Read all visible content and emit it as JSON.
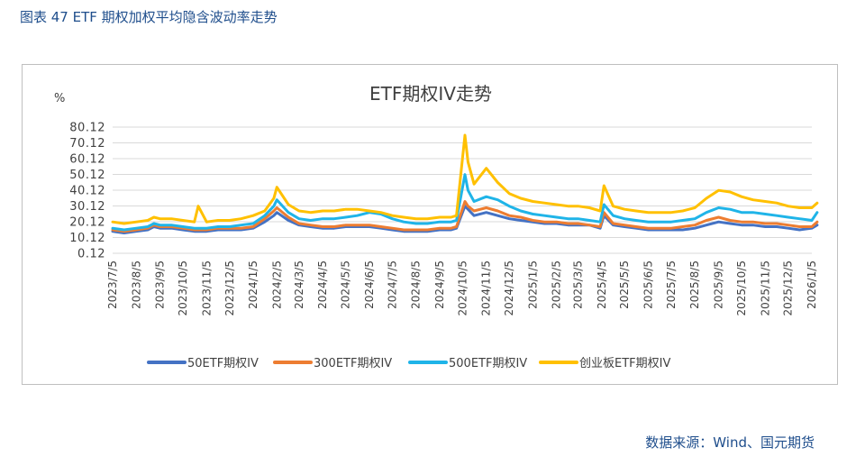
{
  "caption": "图表 47 ETF 期权加权平均隐含波动率走势",
  "source": "数据来源：Wind、国元期货",
  "chart_data": {
    "type": "line",
    "title": "ETF期权IV走势",
    "unit_label": "%",
    "y_ticks": [
      "0.12",
      "10.12",
      "20.12",
      "30.12",
      "40.12",
      "50.12",
      "60.12",
      "70.12",
      "80.12"
    ],
    "ylim": [
      0.12,
      80.12
    ],
    "grid": true,
    "legend_position": "bottom",
    "x_tick_labels": [
      "2023/7/5",
      "2023/8/5",
      "2023/9/5",
      "2023/10/5",
      "2023/11/5",
      "2023/12/5",
      "2024/1/5",
      "2024/2/5",
      "2024/3/5",
      "2024/4/5",
      "2024/5/5",
      "2024/6/5",
      "2024/7/5",
      "2024/8/5",
      "2024/9/5",
      "2024/10/5",
      "2024/11/5",
      "2024/12/5",
      "2025/1/5",
      "2025/2/5",
      "2025/3/5",
      "2025/4/5",
      "2025/5/5",
      "2025/6/5",
      "2025/7/5",
      "2025/8/5",
      "2025/9/5",
      "2025/10/5",
      "2025/11/5",
      "2025/12/5",
      "2026/1/5"
    ],
    "x": [
      "2023-07-05",
      "2023-07-20",
      "2023-08-05",
      "2023-08-20",
      "2023-08-28",
      "2023-09-05",
      "2023-09-20",
      "2023-10-05",
      "2023-10-20",
      "2023-10-25",
      "2023-11-05",
      "2023-11-20",
      "2023-12-05",
      "2023-12-20",
      "2024-01-05",
      "2024-01-20",
      "2024-02-01",
      "2024-02-05",
      "2024-02-20",
      "2024-03-05",
      "2024-03-20",
      "2024-04-05",
      "2024-04-20",
      "2024-05-05",
      "2024-05-20",
      "2024-06-05",
      "2024-06-20",
      "2024-07-05",
      "2024-07-20",
      "2024-08-05",
      "2024-08-20",
      "2024-09-05",
      "2024-09-20",
      "2024-09-27",
      "2024-10-08",
      "2024-10-12",
      "2024-10-20",
      "2024-11-05",
      "2024-11-20",
      "2024-12-05",
      "2024-12-20",
      "2025-01-05",
      "2025-01-20",
      "2025-02-05",
      "2025-02-20",
      "2025-03-05",
      "2025-03-20",
      "2025-04-03",
      "2025-04-08",
      "2025-04-20",
      "2025-05-05",
      "2025-05-20",
      "2025-06-05",
      "2025-06-20",
      "2025-07-05",
      "2025-07-20",
      "2025-08-05",
      "2025-08-20",
      "2025-09-05",
      "2025-09-20",
      "2025-10-05",
      "2025-10-20",
      "2025-11-05",
      "2025-11-20",
      "2025-12-05",
      "2025-12-20",
      "2026-01-05",
      "2026-01-12"
    ],
    "series": [
      {
        "name": "50ETF期权IV",
        "color": "#4472c4",
        "values": [
          14,
          13,
          14,
          15,
          17,
          16,
          16,
          15,
          14,
          14,
          14,
          15,
          15,
          15,
          16,
          20,
          24,
          26,
          21,
          18,
          17,
          16,
          16,
          17,
          17,
          17,
          16,
          15,
          14,
          14,
          14,
          15,
          15,
          16,
          30,
          28,
          24,
          26,
          24,
          22,
          21,
          20,
          19,
          19,
          18,
          18,
          18,
          16,
          24,
          18,
          17,
          16,
          15,
          15,
          15,
          15,
          16,
          18,
          20,
          19,
          18,
          18,
          17,
          17,
          16,
          15,
          16,
          18
        ]
      },
      {
        "name": "300ETF期权IV",
        "color": "#ed7d31",
        "values": [
          15,
          14,
          15,
          16,
          18,
          17,
          17,
          16,
          15,
          15,
          15,
          16,
          16,
          16,
          17,
          22,
          27,
          29,
          23,
          19,
          18,
          17,
          17,
          18,
          18,
          18,
          17,
          16,
          15,
          15,
          15,
          16,
          16,
          17,
          33,
          30,
          27,
          29,
          27,
          24,
          23,
          21,
          20,
          20,
          19,
          19,
          18,
          17,
          26,
          19,
          18,
          17,
          16,
          16,
          16,
          17,
          18,
          21,
          23,
          21,
          20,
          20,
          19,
          19,
          18,
          17,
          17,
          20
        ]
      },
      {
        "name": "500ETF期权IV",
        "color": "#1fb4e8",
        "values": [
          16,
          15,
          16,
          17,
          19,
          18,
          18,
          17,
          16,
          16,
          16,
          17,
          17,
          18,
          19,
          24,
          30,
          34,
          26,
          22,
          21,
          22,
          22,
          23,
          24,
          26,
          25,
          22,
          20,
          19,
          19,
          20,
          20,
          21,
          50,
          40,
          33,
          36,
          34,
          30,
          27,
          25,
          24,
          23,
          22,
          22,
          21,
          20,
          31,
          24,
          22,
          21,
          20,
          20,
          20,
          21,
          22,
          26,
          29,
          28,
          26,
          26,
          25,
          24,
          23,
          22,
          21,
          26
        ]
      },
      {
        "name": "创业板ETF期权IV",
        "color": "#ffc000",
        "values": [
          20,
          19,
          20,
          21,
          23,
          22,
          22,
          21,
          20,
          30,
          20,
          21,
          21,
          22,
          24,
          27,
          35,
          42,
          31,
          27,
          26,
          27,
          27,
          28,
          28,
          27,
          26,
          24,
          23,
          22,
          22,
          23,
          23,
          24,
          75,
          58,
          44,
          54,
          45,
          38,
          35,
          33,
          32,
          31,
          30,
          30,
          29,
          27,
          43,
          30,
          28,
          27,
          26,
          26,
          26,
          27,
          29,
          35,
          40,
          39,
          36,
          34,
          33,
          32,
          30,
          29,
          29,
          32
        ]
      }
    ]
  }
}
